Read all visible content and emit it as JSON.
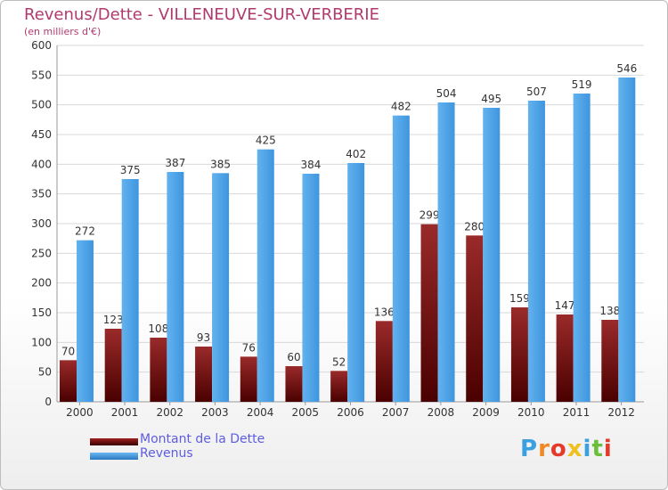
{
  "chart_data": {
    "type": "bar",
    "title": "Revenus/Dette - VILLENEUVE-SUR-VERBERIE",
    "subtitle": "(en milliers d'€)",
    "categories": [
      "2000",
      "2001",
      "2002",
      "2003",
      "2004",
      "2005",
      "2006",
      "2007",
      "2008",
      "2009",
      "2010",
      "2011",
      "2012"
    ],
    "series": [
      {
        "name": "Montant de la Dette",
        "color": "#7a1010",
        "values": [
          70,
          123,
          108,
          93,
          76,
          60,
          52,
          136,
          299,
          280,
          159,
          147,
          138
        ]
      },
      {
        "name": "Revenus",
        "color": "#4a9fe4",
        "values": [
          272,
          375,
          387,
          385,
          425,
          384,
          402,
          482,
          504,
          495,
          507,
          519,
          546
        ]
      }
    ],
    "ylim": [
      0,
      600
    ],
    "yticks": [
      0,
      50,
      100,
      150,
      200,
      250,
      300,
      350,
      400,
      450,
      500,
      550,
      600
    ],
    "grid": true,
    "legend": "bottom-left"
  },
  "logo": {
    "letters": [
      "P",
      "r",
      "o",
      "x",
      "i",
      "t",
      "i"
    ],
    "colors": [
      "#3aa0e0",
      "#f08a24",
      "#e53a2a",
      "#f0c020",
      "#3aa0e0",
      "#6abf3a",
      "#e53a2a"
    ]
  }
}
